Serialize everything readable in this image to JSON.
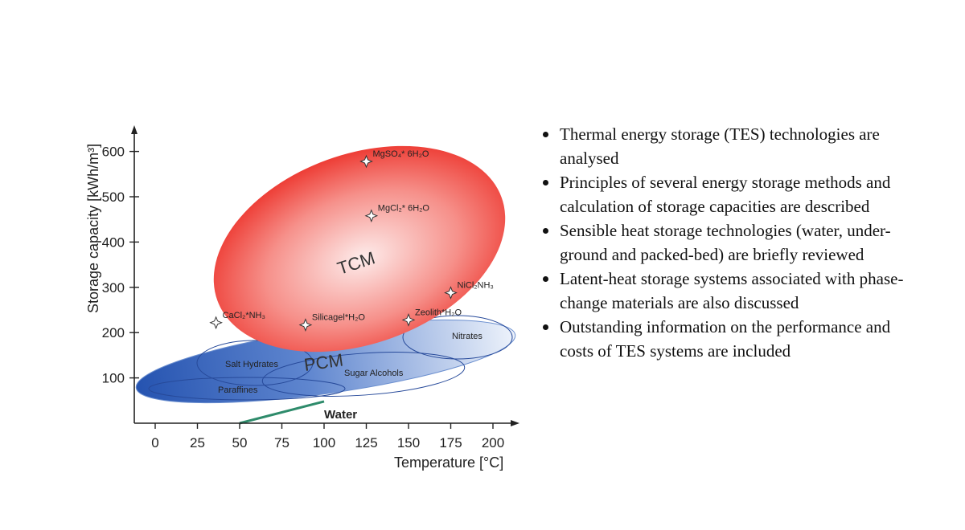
{
  "chart_data": {
    "type": "scatter",
    "xlabel": "Temperature [°C]",
    "ylabel": "Storage capacity [kWh/m³]",
    "xlim": [
      -12,
      210
    ],
    "ylim": [
      0,
      640
    ],
    "x_ticks": [
      0,
      25,
      50,
      75,
      100,
      125,
      150,
      175,
      200
    ],
    "y_ticks": [
      100,
      200,
      300,
      400,
      500,
      600
    ],
    "points": [
      {
        "label": "MgSO₄* 6H₂O",
        "x": 125,
        "y": 578
      },
      {
        "label": "MgCl₂* 6H₂O",
        "x": 128,
        "y": 458
      },
      {
        "label": "NiCl₂NH₃",
        "x": 175,
        "y": 288
      },
      {
        "label": "Zeolith*H₂O",
        "x": 150,
        "y": 228
      },
      {
        "label": "Silicagel*H₂O",
        "x": 89,
        "y": 217
      },
      {
        "label": "CaCl₂*NH₃",
        "x": 36,
        "y": 222
      }
    ],
    "regions": [
      {
        "name": "TCM",
        "color": "#ee2a24"
      },
      {
        "name": "PCM",
        "color": "#2a5bb8"
      },
      {
        "name": "Salt Hydrates"
      },
      {
        "name": "Sugar Alcohols"
      },
      {
        "name": "Nitrates"
      },
      {
        "name": "Paraffines"
      }
    ],
    "water_line": {
      "label": "Water",
      "x": [
        50,
        100
      ],
      "y": [
        0,
        48
      ],
      "color": "#2e8b6b"
    }
  },
  "bullets": [
    "Thermal energy storage (TES) technologies are analysed",
    "Principles of several energy storage methods and calculation of storage capacities are described",
    "Sensible heat storage technologies (water, under-ground and packed-bed) are briefly reviewed",
    "Latent-heat storage systems associated with phase-change materials are also discussed",
    "Outstanding information on the performance and costs of TES systems are included"
  ]
}
